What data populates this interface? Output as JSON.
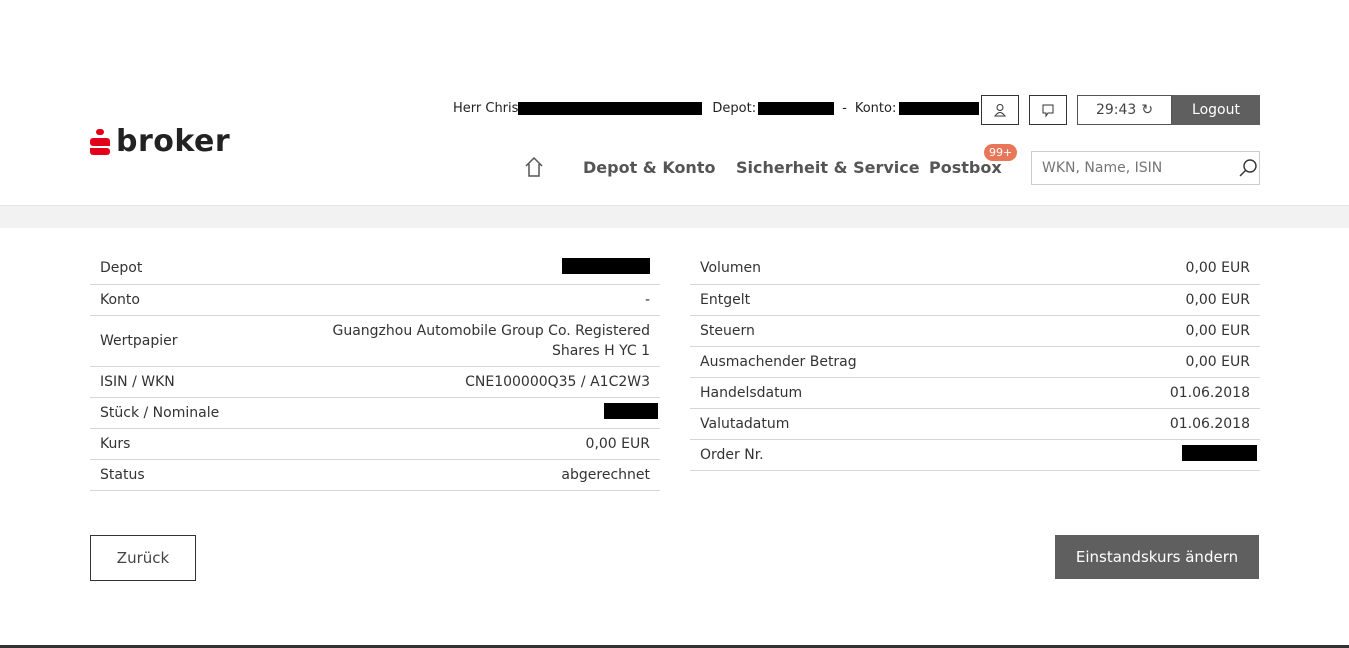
{
  "brand": {
    "name": "broker",
    "color": "#e2001a"
  },
  "header": {
    "user_prefix": "Herr Chris",
    "depot_label": "Depot:",
    "sep": "-",
    "konto_label": "Konto:",
    "timer": "29:43",
    "logout": "Logout",
    "nav": [
      "Depot & Konto",
      "Sicherheit & Service",
      "Postbox"
    ],
    "postbox_badge": "99+",
    "search_placeholder": "WKN, Name, ISIN"
  },
  "left_table": [
    {
      "label": "Depot",
      "value": null,
      "redacted": true
    },
    {
      "label": "Konto",
      "value": "-"
    },
    {
      "label": "Wertpapier",
      "value": "Guangzhou Automobile Group Co. Registered Shares H YC 1"
    },
    {
      "label": "ISIN / WKN",
      "value": "CNE100000Q35 / A1C2W3"
    },
    {
      "label": "Stück / Nominale",
      "value": null,
      "redacted": true
    },
    {
      "label": "Kurs",
      "value": "0,00 EUR"
    },
    {
      "label": "Status",
      "value": "abgerechnet"
    }
  ],
  "right_table": [
    {
      "label": "Volumen",
      "value": "0,00 EUR"
    },
    {
      "label": "Entgelt",
      "value": "0,00 EUR"
    },
    {
      "label": "Steuern",
      "value": "0,00 EUR"
    },
    {
      "label": "Ausmachender Betrag",
      "value": "0,00 EUR"
    },
    {
      "label": "Handelsdatum",
      "value": "01.06.2018"
    },
    {
      "label": "Valutadatum",
      "value": "01.06.2018"
    },
    {
      "label": "Order Nr.",
      "value": null,
      "redacted": true
    }
  ],
  "buttons": {
    "back": "Zurück",
    "primary": "Einstandskurs ändern"
  }
}
